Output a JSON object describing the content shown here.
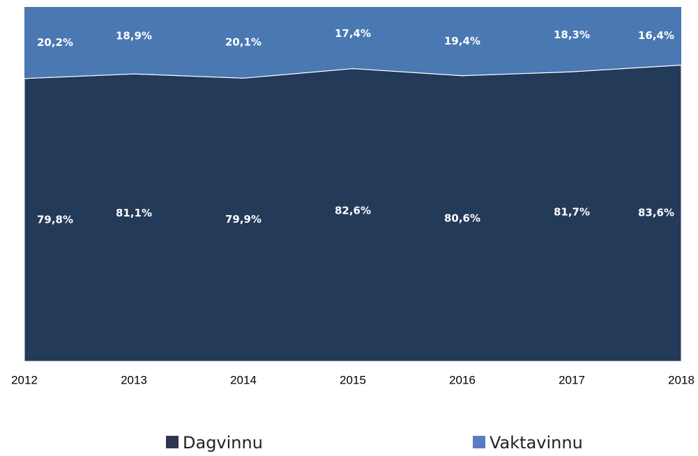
{
  "chart_data": {
    "type": "stacked-area",
    "categories": [
      "2012",
      "2013",
      "2014",
      "2015",
      "2016",
      "2017",
      "2018"
    ],
    "ylim": [
      0,
      100
    ],
    "series": [
      {
        "name": "Dagvinnu",
        "color": "#233a58",
        "values": [
          79.8,
          81.1,
          79.9,
          82.6,
          80.6,
          81.7,
          83.6
        ],
        "value_labels": [
          "79,8%",
          "81,1%",
          "79,9%",
          "82,6%",
          "80,6%",
          "81,7%",
          "83,6%"
        ]
      },
      {
        "name": "Vaktavinnu",
        "color": "#4a78b2",
        "values": [
          20.2,
          18.9,
          20.1,
          17.4,
          19.4,
          18.3,
          16.4
        ],
        "value_labels": [
          "20,2%",
          "18,9%",
          "20,1%",
          "17,4%",
          "19,4%",
          "18,3%",
          "16,4%"
        ]
      }
    ]
  }
}
